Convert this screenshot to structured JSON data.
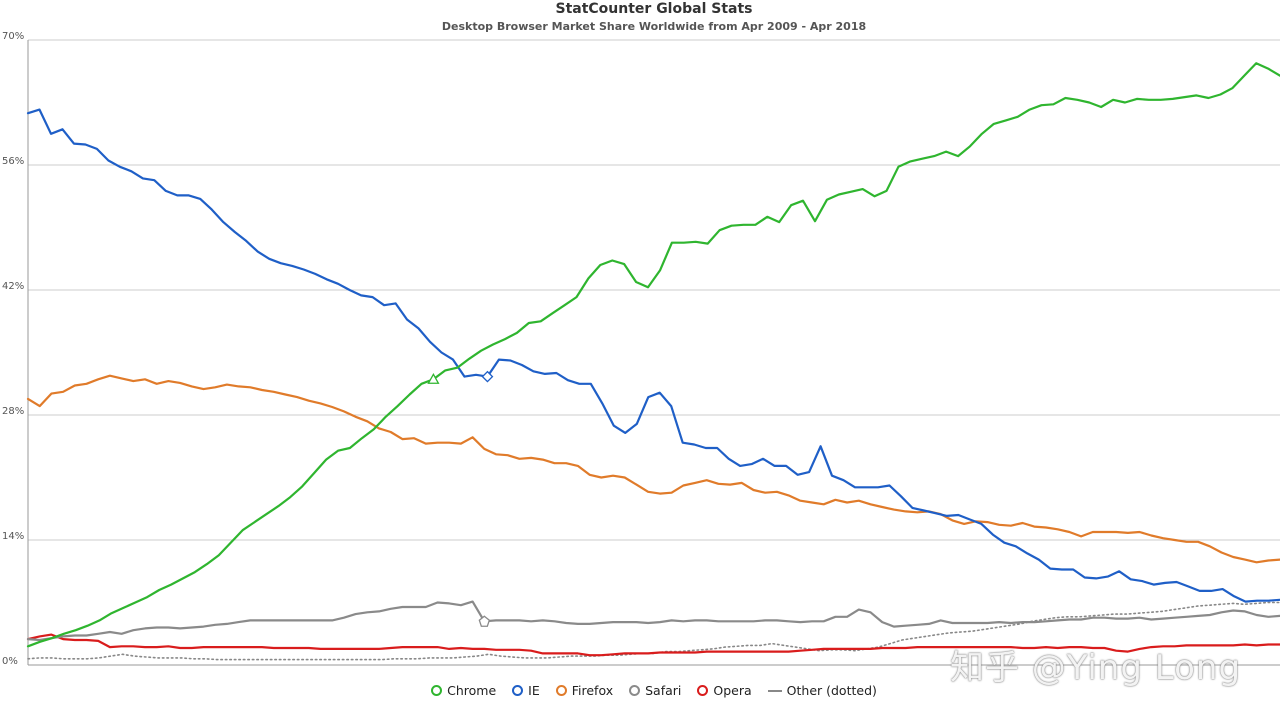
{
  "header": {
    "title": "StatCounter Global Stats",
    "subtitle": "Desktop Browser Market Share Worldwide from Apr 2009 - Apr 2018"
  },
  "watermark": "知乎 @Ying Long",
  "colors": {
    "chrome": "#2fb52f",
    "ie": "#1f5fc7",
    "firefox": "#e07b2a",
    "safari": "#8a8a8a",
    "opera": "#d91c1c",
    "other": "#888888",
    "grid": "#cccccc"
  },
  "chart_data": {
    "type": "line",
    "title": "StatCounter Global Stats",
    "subtitle": "Desktop Browser Market Share Worldwide from Apr 2009 - Apr 2018",
    "x_start": "2009-04",
    "x_end": "2018-04",
    "ylim": [
      0,
      70
    ],
    "yticks": [
      "0%",
      "14%",
      "28%",
      "42%",
      "56%",
      "70%"
    ],
    "grid": true,
    "legend_position": "bottom",
    "series": [
      {
        "name": "Chrome",
        "key": "chrome",
        "marker": "circle",
        "values": [
          2.1,
          2.6,
          3.0,
          3.5,
          3.9,
          4.4,
          5.0,
          5.8,
          6.4,
          7.0,
          7.6,
          8.4,
          9.0,
          9.7,
          10.4,
          11.3,
          12.3,
          13.7,
          15.1,
          16.0,
          16.9,
          17.8,
          18.8,
          20.0,
          21.5,
          23.0,
          24.0,
          24.3,
          25.4,
          26.4,
          27.8,
          29.0,
          30.3,
          31.5,
          32.0,
          33.0,
          33.3,
          34.3,
          35.2,
          35.9,
          36.5,
          37.2,
          38.3,
          38.5,
          39.4,
          40.3,
          41.2,
          43.3,
          44.8,
          45.3,
          44.9,
          42.9,
          42.3,
          44.2,
          47.3,
          47.3,
          47.4,
          47.2,
          48.7,
          49.2,
          49.3,
          49.3,
          50.2,
          49.6,
          51.5,
          52.0,
          49.7,
          52.1,
          52.7,
          53.0,
          53.3,
          52.5,
          53.1,
          55.8,
          56.4,
          56.7,
          57.0,
          57.5,
          57.0,
          58.1,
          59.5,
          60.6,
          61.0,
          61.4,
          62.2,
          62.7,
          62.8,
          63.5,
          63.3,
          63.0,
          62.5,
          63.3,
          63.0,
          63.4,
          63.3,
          63.3,
          63.4,
          63.6,
          63.8,
          63.5,
          63.9,
          64.6,
          66.0,
          67.4,
          66.8,
          66.0
        ]
      },
      {
        "name": "IE",
        "key": "ie",
        "marker": "circle",
        "values": [
          61.8,
          62.2,
          59.5,
          60.0,
          58.4,
          58.3,
          57.8,
          56.5,
          55.8,
          55.3,
          54.5,
          54.3,
          53.1,
          52.6,
          52.6,
          52.2,
          51.0,
          49.6,
          48.5,
          47.5,
          46.3,
          45.5,
          45.0,
          44.7,
          44.3,
          43.8,
          43.2,
          42.7,
          42.0,
          41.4,
          41.2,
          40.3,
          40.5,
          38.7,
          37.7,
          36.2,
          35.0,
          34.2,
          32.3,
          32.5,
          32.3,
          34.2,
          34.1,
          33.6,
          32.9,
          32.6,
          32.7,
          31.9,
          31.5,
          31.5,
          29.3,
          26.8,
          26.0,
          27.0,
          30.0,
          30.5,
          29.0,
          24.9,
          24.7,
          24.3,
          24.3,
          23.1,
          22.3,
          22.5,
          23.1,
          22.3,
          22.3,
          21.3,
          21.6,
          24.5,
          21.2,
          20.7,
          19.9,
          19.9,
          19.9,
          20.1,
          18.9,
          17.6,
          17.3,
          17.0,
          16.7,
          16.8,
          16.3,
          15.8,
          14.6,
          13.7,
          13.3,
          12.5,
          11.8,
          10.8,
          10.7,
          10.7,
          9.8,
          9.7,
          9.9,
          10.5,
          9.6,
          9.4,
          9.0,
          9.2,
          9.3,
          8.8,
          8.3,
          8.3,
          8.5,
          7.7,
          7.1,
          7.2,
          7.2,
          7.3
        ]
      },
      {
        "name": "Firefox",
        "key": "firefox",
        "marker": "circle",
        "values": [
          29.8,
          29.0,
          30.4,
          30.6,
          31.3,
          31.5,
          32.0,
          32.4,
          32.1,
          31.8,
          32.0,
          31.5,
          31.8,
          31.6,
          31.2,
          30.9,
          31.1,
          31.4,
          31.2,
          31.1,
          30.8,
          30.6,
          30.3,
          30.0,
          29.6,
          29.3,
          28.9,
          28.4,
          27.8,
          27.3,
          26.5,
          26.1,
          25.3,
          25.4,
          24.8,
          24.9,
          24.9,
          24.8,
          25.5,
          24.2,
          23.6,
          23.5,
          23.1,
          23.2,
          23.0,
          22.6,
          22.6,
          22.3,
          21.3,
          21.0,
          21.2,
          21.0,
          20.2,
          19.4,
          19.2,
          19.3,
          20.1,
          20.4,
          20.7,
          20.3,
          20.2,
          20.4,
          19.6,
          19.3,
          19.4,
          19.0,
          18.4,
          18.2,
          18.0,
          18.5,
          18.2,
          18.4,
          18.0,
          17.7,
          17.4,
          17.2,
          17.1,
          17.2,
          16.9,
          16.2,
          15.8,
          16.1,
          16.0,
          15.7,
          15.6,
          15.9,
          15.5,
          15.4,
          15.2,
          14.9,
          14.4,
          14.9,
          14.9,
          14.9,
          14.8,
          14.9,
          14.5,
          14.2,
          14.0,
          13.8,
          13.8,
          13.3,
          12.6,
          12.1,
          11.8,
          11.5,
          11.7,
          11.8
        ]
      },
      {
        "name": "Safari",
        "key": "safari",
        "marker": "circle",
        "values": [
          2.9,
          2.8,
          3.0,
          3.2,
          3.3,
          3.3,
          3.5,
          3.7,
          3.5,
          3.9,
          4.1,
          4.2,
          4.2,
          4.1,
          4.2,
          4.3,
          4.5,
          4.6,
          4.8,
          5.0,
          5.0,
          5.0,
          5.0,
          5.0,
          5.0,
          5.0,
          5.0,
          5.3,
          5.7,
          5.9,
          6.0,
          6.3,
          6.5,
          6.5,
          6.5,
          7.0,
          6.9,
          6.7,
          7.1,
          4.9,
          5.0,
          5.0,
          5.0,
          4.9,
          5.0,
          4.9,
          4.7,
          4.6,
          4.6,
          4.7,
          4.8,
          4.8,
          4.8,
          4.7,
          4.8,
          5.0,
          4.9,
          5.0,
          5.0,
          4.9,
          4.9,
          4.9,
          4.9,
          5.0,
          5.0,
          4.9,
          4.8,
          4.9,
          4.9,
          5.4,
          5.4,
          6.2,
          5.9,
          4.8,
          4.3,
          4.4,
          4.5,
          4.6,
          5.0,
          4.7,
          4.7,
          4.7,
          4.7,
          4.8,
          4.7,
          4.8,
          4.8,
          4.9,
          5.0,
          5.1,
          5.1,
          5.3,
          5.3,
          5.2,
          5.2,
          5.3,
          5.1,
          5.2,
          5.3,
          5.4,
          5.5,
          5.6,
          5.9,
          6.1,
          6.0,
          5.6,
          5.4,
          5.5
        ]
      },
      {
        "name": "Opera",
        "key": "opera",
        "marker": "circle",
        "values": [
          2.9,
          3.2,
          3.4,
          2.9,
          2.8,
          2.8,
          2.7,
          2.0,
          2.1,
          2.1,
          2.0,
          2.0,
          2.1,
          1.9,
          1.9,
          2.0,
          2.0,
          2.0,
          2.0,
          2.0,
          2.0,
          1.9,
          1.9,
          1.9,
          1.9,
          1.8,
          1.8,
          1.8,
          1.8,
          1.8,
          1.8,
          1.9,
          2.0,
          2.0,
          2.0,
          2.0,
          1.8,
          1.9,
          1.8,
          1.8,
          1.7,
          1.7,
          1.7,
          1.6,
          1.3,
          1.3,
          1.3,
          1.3,
          1.1,
          1.1,
          1.2,
          1.3,
          1.3,
          1.3,
          1.4,
          1.4,
          1.4,
          1.4,
          1.5,
          1.5,
          1.5,
          1.5,
          1.5,
          1.5,
          1.5,
          1.5,
          1.6,
          1.7,
          1.8,
          1.8,
          1.8,
          1.8,
          1.8,
          1.9,
          1.9,
          1.9,
          2.0,
          2.0,
          2.0,
          2.0,
          2.0,
          2.0,
          2.0,
          2.0,
          2.0,
          1.9,
          1.9,
          2.0,
          1.9,
          2.0,
          2.0,
          1.9,
          1.9,
          1.6,
          1.5,
          1.8,
          2.0,
          2.1,
          2.1,
          2.2,
          2.2,
          2.2,
          2.2,
          2.2,
          2.3,
          2.2,
          2.3,
          2.3
        ]
      },
      {
        "name": "Other (dotted)",
        "key": "other",
        "marker": "line",
        "dotted": true,
        "values": [
          0.7,
          0.8,
          0.8,
          0.7,
          0.7,
          0.7,
          0.8,
          1.0,
          1.2,
          1.0,
          0.9,
          0.8,
          0.8,
          0.8,
          0.7,
          0.7,
          0.6,
          0.6,
          0.6,
          0.6,
          0.6,
          0.6,
          0.6,
          0.6,
          0.6,
          0.6,
          0.6,
          0.6,
          0.6,
          0.6,
          0.6,
          0.7,
          0.7,
          0.7,
          0.8,
          0.8,
          0.8,
          0.9,
          1.0,
          1.2,
          1.0,
          0.9,
          0.8,
          0.8,
          0.8,
          0.9,
          1.0,
          1.0,
          1.0,
          1.1,
          1.1,
          1.2,
          1.3,
          1.3,
          1.5,
          1.5,
          1.6,
          1.7,
          1.8,
          2.0,
          2.1,
          2.2,
          2.2,
          2.4,
          2.2,
          2.0,
          1.8,
          1.6,
          1.7,
          1.7,
          1.6,
          1.8,
          2.0,
          2.4,
          2.8,
          3.0,
          3.2,
          3.4,
          3.6,
          3.7,
          3.8,
          4.0,
          4.2,
          4.4,
          4.6,
          4.9,
          5.1,
          5.3,
          5.4,
          5.4,
          5.5,
          5.6,
          5.7,
          5.7,
          5.8,
          5.9,
          6.0,
          6.2,
          6.4,
          6.6,
          6.7,
          6.8,
          6.9,
          6.8,
          6.9,
          7.0,
          7.0
        ]
      }
    ]
  }
}
